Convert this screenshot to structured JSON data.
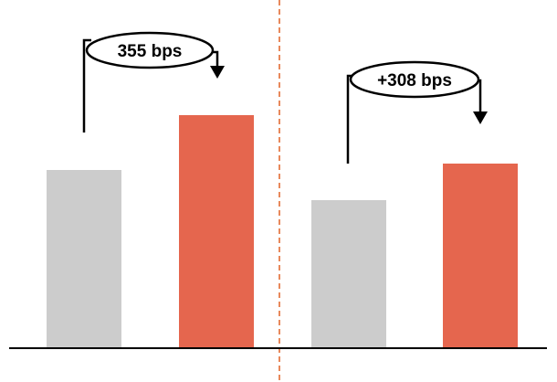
{
  "chart_data": [
    {
      "type": "bar",
      "categories": [
        "",
        ""
      ],
      "values": [
        195,
        255
      ],
      "annotation": "355 bps",
      "colors": [
        "#cccccc",
        "#e5664e"
      ]
    },
    {
      "type": "bar",
      "categories": [
        "",
        ""
      ],
      "values": [
        162,
        202
      ],
      "annotation": "+308 bps",
      "colors": [
        "#cccccc",
        "#e5664e"
      ]
    }
  ],
  "style": {
    "baseline_color": "#000000",
    "divider_color": "#e8895c",
    "arrow_color": "#000000"
  }
}
